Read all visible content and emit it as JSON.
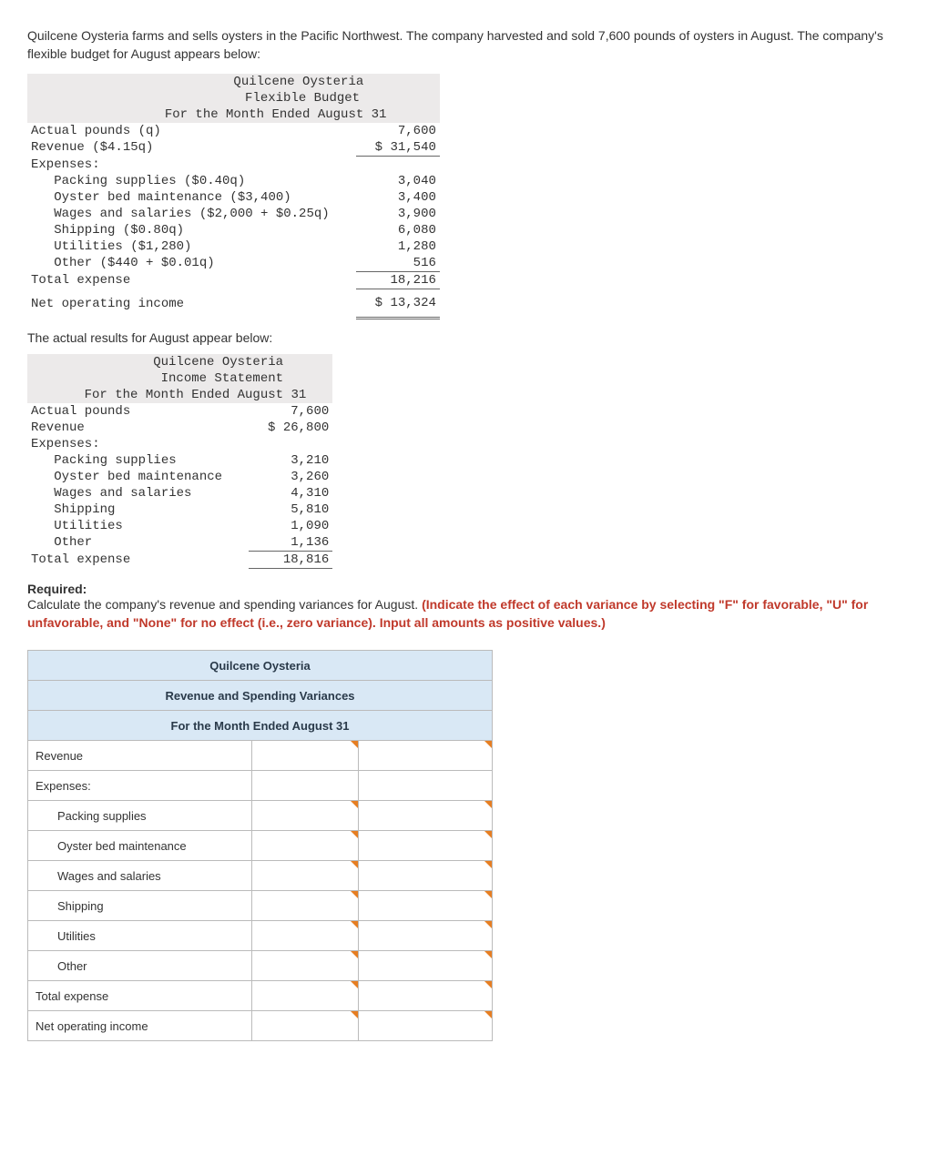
{
  "intro": "Quilcene Oysteria farms and sells oysters in the Pacific Northwest. The company harvested and sold 7,600 pounds of oysters in August. The company's flexible budget for August appears below:",
  "budget": {
    "title1": "Quilcene Oysteria",
    "title2": "Flexible Budget",
    "title3": "For the Month Ended August 31",
    "rows": [
      {
        "label": "Actual pounds (q)",
        "value": "7,600",
        "indent": 0
      },
      {
        "label": "Revenue ($4.15q)",
        "value": "$ 31,540",
        "indent": 0,
        "ul": true
      },
      {
        "label": "Expenses:",
        "value": "",
        "indent": 0
      },
      {
        "label": "Packing supplies ($0.40q)",
        "value": "3,040",
        "indent": 1
      },
      {
        "label": "Oyster bed maintenance ($3,400)",
        "value": "3,400",
        "indent": 1
      },
      {
        "label": "Wages and salaries ($2,000 + $0.25q)",
        "value": "3,900",
        "indent": 1
      },
      {
        "label": "Shipping ($0.80q)",
        "value": "6,080",
        "indent": 1
      },
      {
        "label": "Utilities ($1,280)",
        "value": "1,280",
        "indent": 1
      },
      {
        "label": "Other ($440 + $0.01q)",
        "value": "516",
        "indent": 1,
        "ul": true
      },
      {
        "label": "Total expense",
        "value": "18,216",
        "indent": 0,
        "ul": true
      },
      {
        "label": "Net operating income",
        "value": "$ 13,324",
        "indent": 0,
        "dbl": true,
        "spaced": true
      }
    ],
    "label_width": 42,
    "val_width": 10
  },
  "actual_intro": "The actual results for August appear below:",
  "actual": {
    "title1": "Quilcene Oysteria",
    "title2": "Income Statement",
    "title3": "For the Month Ended August 31",
    "rows": [
      {
        "label": "Actual pounds",
        "value": "7,600",
        "indent": 0
      },
      {
        "label": "Revenue",
        "value": "$ 26,800",
        "indent": 0
      },
      {
        "label": "Expenses:",
        "value": "",
        "indent": 0
      },
      {
        "label": "Packing supplies",
        "value": "3,210",
        "indent": 1
      },
      {
        "label": "Oyster bed maintenance",
        "value": "3,260",
        "indent": 1
      },
      {
        "label": "Wages and salaries",
        "value": "4,310",
        "indent": 1
      },
      {
        "label": "Shipping",
        "value": "5,810",
        "indent": 1
      },
      {
        "label": "Utilities",
        "value": "1,090",
        "indent": 1
      },
      {
        "label": "Other",
        "value": "1,136",
        "indent": 1,
        "ul": true
      },
      {
        "label": "Total expense",
        "value": "18,816",
        "indent": 0,
        "ul": true
      }
    ],
    "label_width": 28,
    "val_width": 10
  },
  "required_label": "Required:",
  "required_text_plain": "Calculate the company's revenue and spending variances for August. ",
  "required_text_red": "(Indicate the effect of each variance by selecting \"F\" for favorable, \"U\" for unfavorable, and \"None\" for no effect (i.e., zero variance). Input all amounts as positive values.)",
  "answer": {
    "h1": "Quilcene Oysteria",
    "h2": "Revenue and Spending Variances",
    "h3": "For the Month Ended August 31",
    "rows": [
      {
        "label": "Revenue",
        "indent": 0,
        "input": true,
        "dd": true
      },
      {
        "label": "Expenses:",
        "indent": 0,
        "input": false,
        "dd": false
      },
      {
        "label": "Packing supplies",
        "indent": 2,
        "input": true,
        "dd": true
      },
      {
        "label": "Oyster bed maintenance",
        "indent": 2,
        "input": true,
        "dd": true
      },
      {
        "label": "Wages and salaries",
        "indent": 2,
        "input": true,
        "dd": true
      },
      {
        "label": "Shipping",
        "indent": 2,
        "input": true,
        "dd": true
      },
      {
        "label": "Utilities",
        "indent": 2,
        "input": true,
        "dd": true
      },
      {
        "label": "Other",
        "indent": 2,
        "input": true,
        "dd": true
      },
      {
        "label": "Total expense",
        "indent": 0,
        "input": true,
        "dd": true
      },
      {
        "label": "Net operating income",
        "indent": 0,
        "input": true,
        "dd": true
      }
    ]
  }
}
